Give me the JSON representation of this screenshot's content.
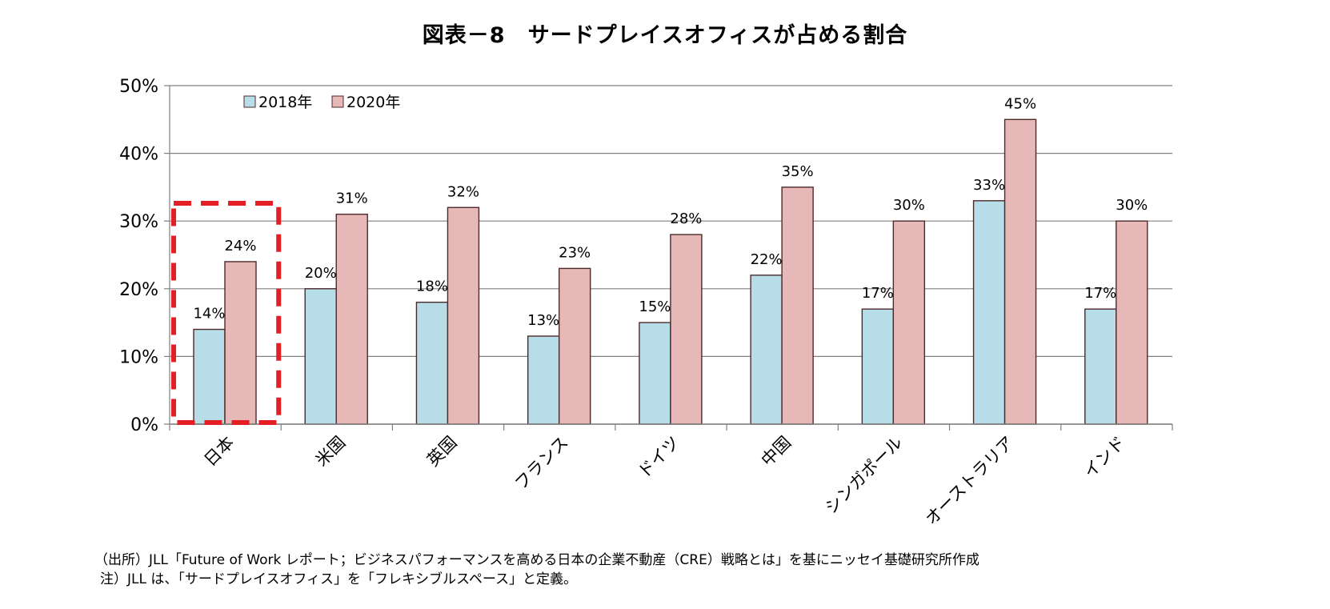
{
  "chart_data": {
    "type": "bar",
    "title": "図表－8　サードプレイスオフィスが占める割合",
    "xlabel": "",
    "ylabel": "",
    "ylim": [
      0,
      50
    ],
    "yticks": [
      "0%",
      "10%",
      "20%",
      "30%",
      "40%",
      "50%"
    ],
    "ytick_values": [
      0,
      10,
      20,
      30,
      40,
      50
    ],
    "grid": true,
    "legend_position": "top-left",
    "categories": [
      "日本",
      "米国",
      "英国",
      "フランス",
      "ドイツ",
      "中国",
      "シンガポール",
      "オーストラリア",
      "インド"
    ],
    "series": [
      {
        "name": "2018年",
        "color": "#b7dde8",
        "values": [
          14,
          20,
          18,
          13,
          15,
          22,
          17,
          33,
          17
        ],
        "labels": [
          "14%",
          "20%",
          "18%",
          "13%",
          "15%",
          "22%",
          "17%",
          "33%",
          "17%"
        ]
      },
      {
        "name": "2020年",
        "color": "#e6b9b8",
        "values": [
          24,
          31,
          32,
          23,
          28,
          35,
          30,
          45,
          30
        ],
        "labels": [
          "24%",
          "31%",
          "32%",
          "23%",
          "28%",
          "35%",
          "30%",
          "45%",
          "30%"
        ]
      }
    ],
    "highlight": {
      "category": "日本",
      "color": "#e31e24",
      "style": "dashed"
    }
  },
  "notes": {
    "source": "（出所）JLL「Future of Work レポート；ビジネスパフォーマンスを高める日本の企業不動産（CRE）戦略とは」を基にニッセイ基礎研究所作成",
    "note": "注）JLL は、「サードプレイスオフィス」を「フレキシブルスペース」と定義。"
  },
  "colors": {
    "gridline": "#808080",
    "axis": "#808080",
    "bar_outline": "#4d2a2a"
  }
}
